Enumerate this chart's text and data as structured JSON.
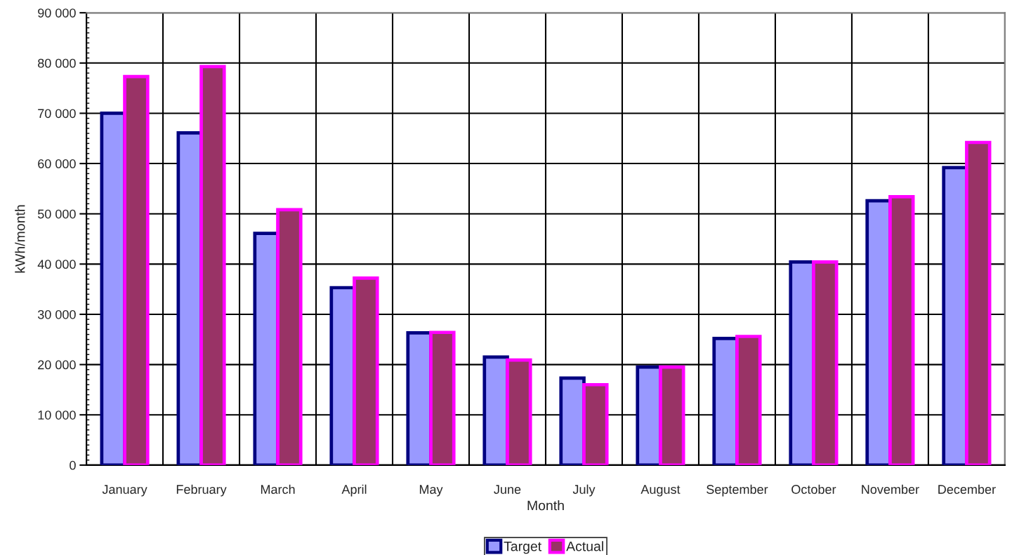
{
  "chart_data": {
    "type": "bar",
    "xlabel": "Month",
    "ylabel": "kWh/month",
    "categories": [
      "January",
      "February",
      "March",
      "April",
      "May",
      "June",
      "July",
      "August",
      "September",
      "October",
      "November",
      "December"
    ],
    "series": [
      {
        "name": "Target",
        "color": "#9999ff",
        "values": [
          70000,
          66100,
          46100,
          35300,
          26300,
          21500,
          17300,
          19500,
          25200,
          40400,
          52600,
          59200
        ]
      },
      {
        "name": "Actual",
        "color": "#993366",
        "values": [
          77300,
          79300,
          50800,
          37200,
          26400,
          20900,
          16000,
          19500,
          25600,
          40400,
          53400,
          64200
        ]
      }
    ],
    "ylim": [
      0,
      90000
    ],
    "yticks": [
      0,
      {
        "value": 10000,
        "label": "10 000"
      },
      {
        "value": 20000,
        "label": "20 000"
      },
      {
        "value": 30000,
        "label": "30 000"
      },
      {
        "value": 40000,
        "label": "40 000"
      },
      {
        "value": 50000,
        "label": "50 000"
      },
      {
        "value": 60000,
        "label": "60 000"
      },
      {
        "value": 70000,
        "label": "70 000"
      },
      {
        "value": 80000,
        "label": "80 000"
      },
      {
        "value": 90000,
        "label": "90 000"
      }
    ],
    "grid": true,
    "legend": "bottom"
  }
}
